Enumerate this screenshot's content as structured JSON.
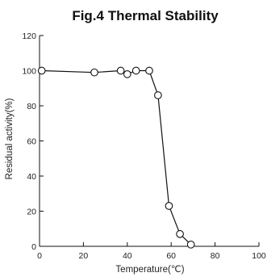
{
  "chart_data": {
    "type": "line",
    "title": "Fig.4 Thermal Stability",
    "xlabel": "Temperature(℃)",
    "ylabel": "Residual activity(%)",
    "xlim": [
      0,
      100
    ],
    "ylim": [
      0,
      120
    ],
    "xticks": [
      0,
      20,
      40,
      60,
      80,
      100
    ],
    "yticks": [
      0,
      20,
      40,
      60,
      80,
      100,
      120
    ],
    "grid": false,
    "marker": "open-circle",
    "series": [
      {
        "x": [
          1,
          25,
          37,
          40,
          44,
          50,
          54,
          59,
          64,
          69
        ],
        "y": [
          100,
          99,
          100,
          98,
          100,
          100,
          86,
          23,
          7,
          1
        ]
      }
    ],
    "colors": {
      "line": "#111111",
      "marker_fill": "#ffffff",
      "axis": "#111111"
    }
  }
}
